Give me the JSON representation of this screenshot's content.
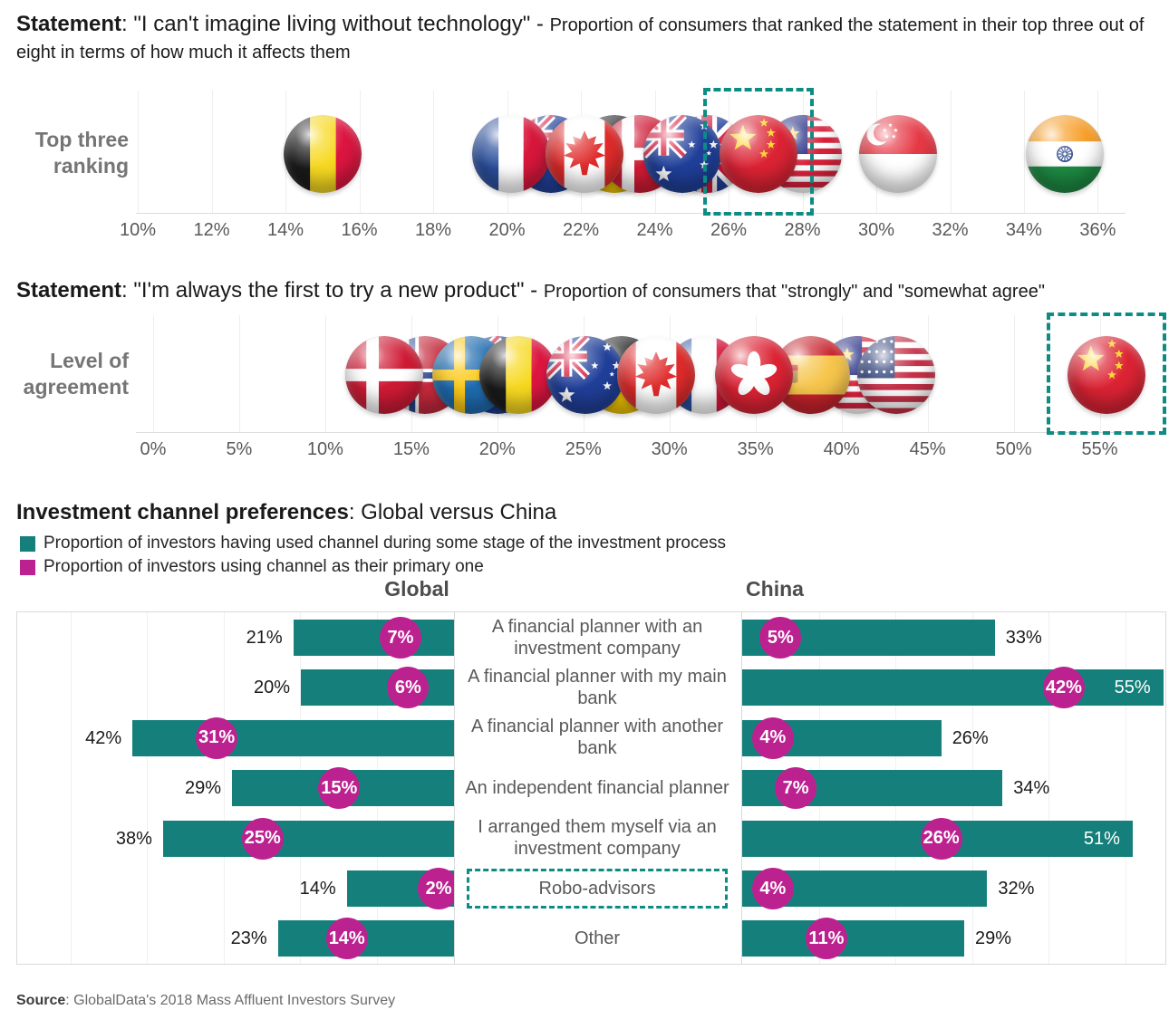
{
  "colors": {
    "teal": "#15807b",
    "magenta": "#bc2190",
    "dash_teal": "#0d8c83",
    "axis_text": "#595959"
  },
  "section1": {
    "title_bold": "Statement",
    "title_main": ": \"I can't imagine living without technology\" - ",
    "title_sub": "Proportion of consumers that ranked the statement in their top three out of eight in terms of how much it affects them"
  },
  "section2": {
    "title_bold": "Statement",
    "title_main": ": \"I'm always the first to try a new product\" - ",
    "title_sub": "Proportion of consumers that \"strongly\" and \"somewhat agree\""
  },
  "section3": {
    "title_bold": "Investment channel preferences",
    "title_main": ": Global versus China"
  },
  "footer": {
    "bold": "Source",
    "rest": ": GlobalData's 2018 Mass Affluent Investors Survey"
  },
  "chart_data": [
    {
      "type": "scatter",
      "title": "I can't imagine living without technology - top three ranking",
      "row_label": "Top three ranking",
      "x_axis": {
        "min": 9.95,
        "max": 36.75,
        "unit": "%",
        "ticks": [
          10,
          12,
          14,
          16,
          18,
          20,
          22,
          24,
          26,
          28,
          30,
          32,
          34,
          36
        ]
      },
      "points": [
        {
          "country": "Belgium",
          "value": 15.0,
          "z": 5
        },
        {
          "country": "France",
          "value": 20.1,
          "z": 6
        },
        {
          "country": "New Zealand",
          "value": 21.2,
          "z": 3
        },
        {
          "country": "Germany",
          "value": 22.9,
          "z": 1
        },
        {
          "country": "Canada",
          "value": 22.1,
          "z": 7
        },
        {
          "country": "Denmark",
          "value": 23.6,
          "z": 4
        },
        {
          "country": "United Kingdom",
          "value": 25.4,
          "z": 2
        },
        {
          "country": "Australia",
          "value": 24.75,
          "z": 8
        },
        {
          "country": "Malaysia",
          "value": 28.0,
          "z": 8
        },
        {
          "country": "China",
          "value": 26.8,
          "z": 9,
          "highlight": true
        },
        {
          "country": "Singapore",
          "value": 30.6,
          "z": 5
        },
        {
          "country": "India",
          "value": 35.1,
          "z": 5
        }
      ]
    },
    {
      "type": "scatter",
      "title": "I'm always the first to try a new product - level of agreement",
      "row_label": "Level of agreement",
      "x_axis": {
        "min": -1,
        "max": 56.5,
        "unit": "%",
        "ticks": [
          0,
          5,
          10,
          15,
          20,
          25,
          30,
          35,
          40,
          45,
          50,
          55
        ]
      },
      "points": [
        {
          "country": "Denmark",
          "value": 13.4,
          "z": 8
        },
        {
          "country": "Norway",
          "value": 15.8,
          "z": 3
        },
        {
          "country": "Sweden",
          "value": 18.5,
          "z": 6
        },
        {
          "country": "New Zealand",
          "value": 20.0,
          "z": 4
        },
        {
          "country": "Belgium",
          "value": 21.2,
          "z": 7
        },
        {
          "country": "Australia",
          "value": 25.1,
          "z": 8
        },
        {
          "country": "Germany",
          "value": 27.2,
          "z": 5
        },
        {
          "country": "Canada",
          "value": 29.2,
          "z": 9
        },
        {
          "country": "France",
          "value": 32.0,
          "z": 6
        },
        {
          "country": "Hong Kong",
          "value": 34.9,
          "z": 9
        },
        {
          "country": "Spain",
          "value": 38.2,
          "z": 8
        },
        {
          "country": "Malaysia",
          "value": 40.9,
          "z": 7
        },
        {
          "country": "United States",
          "value": 43.2,
          "z": 8
        },
        {
          "country": "China",
          "value": 55.4,
          "z": 9,
          "highlight": true
        }
      ]
    },
    {
      "type": "bar",
      "title": "Investment channel preferences: Global versus China",
      "legend": [
        {
          "label": "Proportion of investors having used channel during some stage of the investment process",
          "color": "#15807b"
        },
        {
          "label": "Proportion of investors using channel as their primary one",
          "color": "#bc2190"
        }
      ],
      "panels": [
        "Global",
        "China"
      ],
      "categories": [
        "A financial planner with an investment company",
        "A financial planner with my main bank",
        "A financial planner with another bank",
        "An independent financial planner",
        "I arranged them myself via an investment company",
        "Robo-advisors",
        "Other"
      ],
      "highlight_category": "Robo-advisors",
      "series": [
        {
          "name": "Global used",
          "values": [
            21,
            20,
            42,
            29,
            38,
            14,
            23
          ]
        },
        {
          "name": "Global primary",
          "values": [
            7,
            6,
            31,
            15,
            25,
            2,
            14
          ]
        },
        {
          "name": "China used",
          "values": [
            33,
            55,
            26,
            34,
            51,
            32,
            29
          ]
        },
        {
          "name": "China primary",
          "values": [
            5,
            42,
            4,
            7,
            26,
            4,
            11
          ]
        }
      ],
      "china_inside_label_rows": [
        1,
        4
      ]
    }
  ]
}
